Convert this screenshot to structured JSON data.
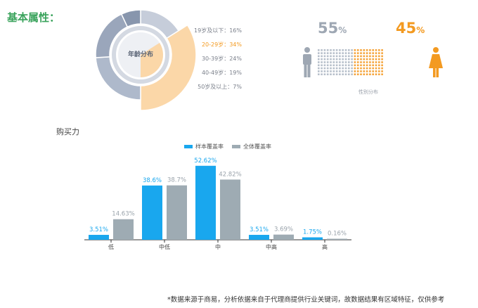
{
  "section_title": "基本属性：",
  "age": {
    "center_label": "年龄分布",
    "legend": [
      {
        "label": "19岁及以下：16%",
        "highlight": false
      },
      {
        "label": "20-29岁：34%",
        "highlight": true
      },
      {
        "label": "30-39岁：24%",
        "highlight": false
      },
      {
        "label": "40-49岁：19%",
        "highlight": false
      },
      {
        "label": "50岁及以上：7%",
        "highlight": false
      }
    ],
    "values": [
      16,
      34,
      24,
      19,
      7
    ],
    "highlight_index": 1,
    "colors": {
      "ring": "#b3bccd",
      "ring_dark": "#8e9bb2",
      "highlight": "#fbd7a8",
      "inner": "#d4d9e2"
    }
  },
  "gender": {
    "male_value": "55",
    "female_value": "45",
    "unit": "%",
    "caption": "性别分布",
    "male_color": "#9ea7b3",
    "female_color": "#f39a21"
  },
  "purchase": {
    "title": "购买力",
    "legend_sample": "样本覆盖率",
    "legend_total": "全体覆盖率",
    "sample_color": "#19a7ee",
    "total_color": "#9eabb3"
  },
  "chart_data": {
    "type": "bar",
    "title": "购买力",
    "categories": [
      "低",
      "中低",
      "中",
      "中高",
      "高"
    ],
    "series": [
      {
        "name": "样本覆盖率",
        "values": [
          3.51,
          38.6,
          52.62,
          3.51,
          1.75
        ],
        "labels": [
          "3.51%",
          "38.6%",
          "52.62%",
          "3.51%",
          "1.75%"
        ]
      },
      {
        "name": "全体覆盖率",
        "values": [
          14.63,
          38.7,
          42.82,
          3.69,
          0.16
        ],
        "labels": [
          "14.63%",
          "38.7%",
          "42.82%",
          "3.69%",
          "0.16%"
        ]
      }
    ],
    "xlabel": "",
    "ylabel": "",
    "ylim": [
      0,
      60
    ],
    "grid": false,
    "legend_position": "top"
  },
  "footnote": "*数据来源于商易，分析依据来自于代理商提供行业关键词，故数据结果有区域特征，仅供参考"
}
